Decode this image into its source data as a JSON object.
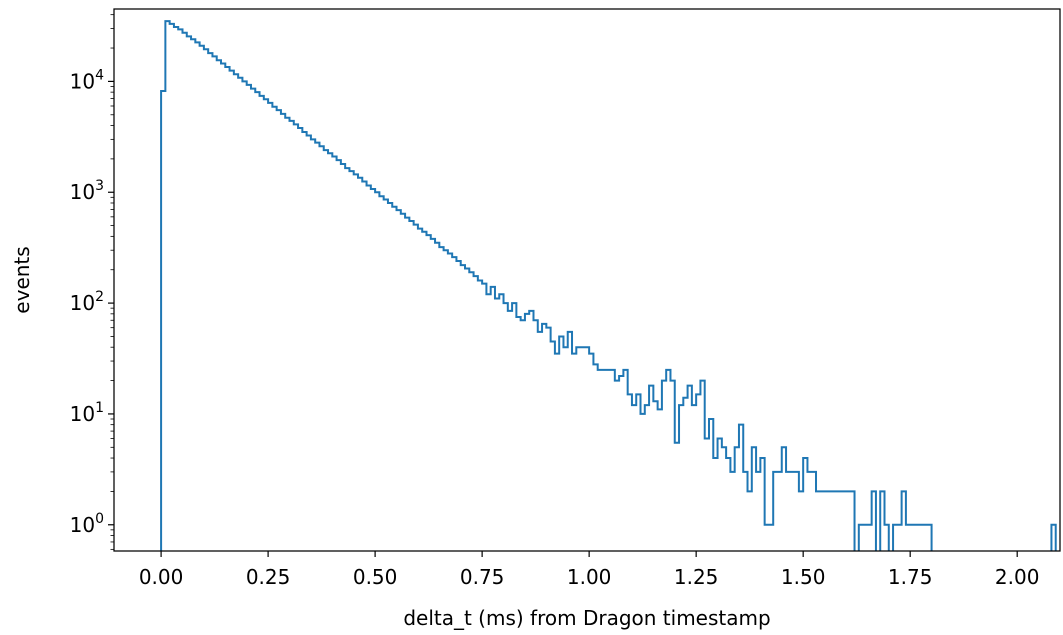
{
  "chart_data": {
    "type": "histogram-step",
    "title": "",
    "xlabel": "delta_t (ms) from Dragon timestamp",
    "ylabel": "events",
    "xlim": [
      -0.11,
      2.1
    ],
    "ylim": [
      0.58,
      45000
    ],
    "yscale": "log",
    "grid": false,
    "legend": "none",
    "x_ticks": [
      "0.00",
      "0.25",
      "0.50",
      "0.75",
      "1.00",
      "1.25",
      "1.50",
      "1.75",
      "2.00"
    ],
    "x_tick_values": [
      0,
      0.25,
      0.5,
      0.75,
      1.0,
      1.25,
      1.5,
      1.75,
      2.0
    ],
    "y_ticks": [
      {
        "base": "10",
        "exp": "0",
        "value": 1
      },
      {
        "base": "10",
        "exp": "1",
        "value": 10
      },
      {
        "base": "10",
        "exp": "2",
        "value": 100
      },
      {
        "base": "10",
        "exp": "3",
        "value": 1000
      },
      {
        "base": "10",
        "exp": "4",
        "value": 10000
      }
    ],
    "series": [
      {
        "color": "#1f77b4",
        "bin_width": 0.01,
        "x_start": 0.0,
        "values": [
          8200,
          35000,
          33000,
          31000,
          29500,
          27500,
          25500,
          24000,
          22500,
          21000,
          19500,
          18000,
          16800,
          15500,
          14500,
          13500,
          12500,
          11600,
          10800,
          10000,
          9300,
          8600,
          8000,
          7400,
          6900,
          6400,
          5900,
          5500,
          5100,
          4700,
          4400,
          4100,
          3800,
          3500,
          3250,
          3000,
          2800,
          2600,
          2400,
          2250,
          2100,
          1950,
          1800,
          1650,
          1550,
          1450,
          1350,
          1250,
          1150,
          1070,
          1000,
          920,
          860,
          800,
          740,
          690,
          640,
          590,
          550,
          510,
          470,
          440,
          410,
          380,
          350,
          320,
          300,
          280,
          260,
          240,
          220,
          205,
          190,
          175,
          160,
          150,
          120,
          140,
          110,
          120,
          100,
          85,
          100,
          75,
          70,
          80,
          85,
          70,
          55,
          65,
          60,
          45,
          35,
          50,
          40,
          55,
          35,
          40,
          40,
          40,
          35,
          28,
          25,
          25,
          25,
          25,
          20,
          22,
          25,
          15,
          12,
          15,
          10,
          12,
          18,
          13,
          11,
          20,
          25,
          20,
          5.5,
          12,
          14,
          18,
          12,
          15,
          20,
          6,
          9,
          4,
          6,
          5,
          4,
          3,
          5,
          8,
          3,
          2,
          5,
          3,
          4,
          1,
          1,
          3,
          3,
          5,
          3,
          3,
          3,
          2,
          4,
          3,
          3,
          2,
          2,
          2,
          2,
          2,
          2,
          2,
          2,
          2,
          0,
          1,
          1,
          1,
          2,
          0,
          2,
          1,
          0,
          1,
          1,
          2,
          1,
          1,
          1,
          1,
          1,
          1,
          0,
          0,
          0,
          0,
          0,
          0,
          0,
          0,
          0,
          0,
          0,
          0,
          0,
          0,
          0,
          0,
          0,
          0,
          0,
          0,
          0,
          0,
          0,
          0,
          0,
          0,
          0,
          0,
          1,
          0
        ]
      }
    ]
  }
}
